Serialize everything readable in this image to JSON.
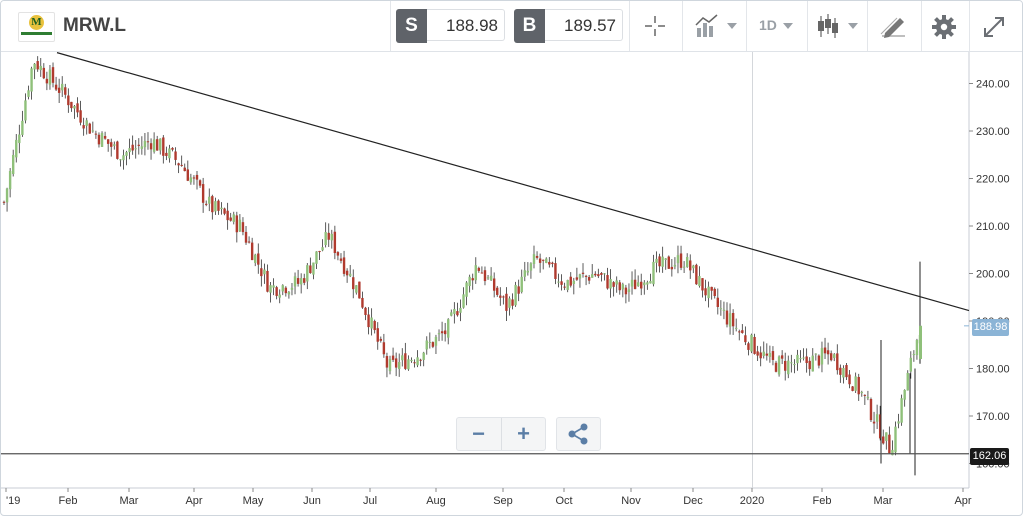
{
  "header": {
    "symbol": "MRW.L",
    "sell_label": "S",
    "sell_price": "188.98",
    "buy_label": "B",
    "buy_price": "189.57",
    "timeframe": "1D",
    "tools": [
      "crosshair-icon",
      "chart-type-icon",
      "timeframe-select",
      "candlestick-icon",
      "draw-icon",
      "gear-icon",
      "expand-icon"
    ]
  },
  "zoom": {
    "minus": "−",
    "plus": "+"
  },
  "colors": {
    "up": "#8fc07a",
    "down": "#b03a2e",
    "trend": "#222222",
    "current": "#8bb4d6",
    "support": "#555555"
  },
  "chart_data": {
    "type": "candlestick",
    "instrument": "MRW.L",
    "interval": "1D",
    "y_ticks": [
      160,
      170,
      180,
      190,
      200,
      210,
      220,
      230,
      240
    ],
    "y_tick_labels": [
      "160.00",
      "170.00",
      "180.00",
      "190.00",
      "200.00",
      "210.00",
      "220.00",
      "230.00",
      "240.00"
    ],
    "ylim": [
      157,
      247
    ],
    "x_months": [
      "'19",
      "Feb",
      "Mar",
      "Apr",
      "May",
      "Jun",
      "Jul",
      "Aug",
      "Sep",
      "Oct",
      "Nov",
      "Dec",
      "2020",
      "Feb",
      "Mar",
      "Apr"
    ],
    "current_price": "188.98",
    "support_level": "162.06",
    "trendline": {
      "from": [
        "Feb 2019",
        246.5
      ],
      "to": [
        "Mar 2020",
        192.3
      ]
    },
    "approx_close_path": [
      [
        "Jan 2019",
        215
      ],
      [
        "early Feb",
        245
      ],
      [
        "mid Feb",
        238
      ],
      [
        "early Mar",
        230
      ],
      [
        "mid Mar",
        225
      ],
      [
        "early Apr",
        228
      ],
      [
        "mid Apr",
        223
      ],
      [
        "early May",
        214
      ],
      [
        "end May",
        210
      ],
      [
        "early Jun",
        197
      ],
      [
        "end Jun",
        198
      ],
      [
        "mid Jul",
        208
      ],
      [
        "end Jul",
        196
      ],
      [
        "mid Aug",
        180
      ],
      [
        "end Aug",
        183
      ],
      [
        "early Sep",
        188
      ],
      [
        "mid Sep",
        202
      ],
      [
        "end Sep",
        193
      ],
      [
        "early Oct",
        203
      ],
      [
        "end Oct",
        198
      ],
      [
        "mid Nov",
        200
      ],
      [
        "end Nov",
        196
      ],
      [
        "early Dec",
        201
      ],
      [
        "mid Dec",
        203
      ],
      [
        "end Dec",
        194
      ],
      [
        "early Jan 2020",
        187
      ],
      [
        "mid Jan",
        181
      ],
      [
        "early Feb",
        181
      ],
      [
        "mid Feb",
        183
      ],
      [
        "early Mar",
        175
      ],
      [
        "mid Mar",
        163
      ],
      [
        "end",
        189
      ]
    ]
  }
}
